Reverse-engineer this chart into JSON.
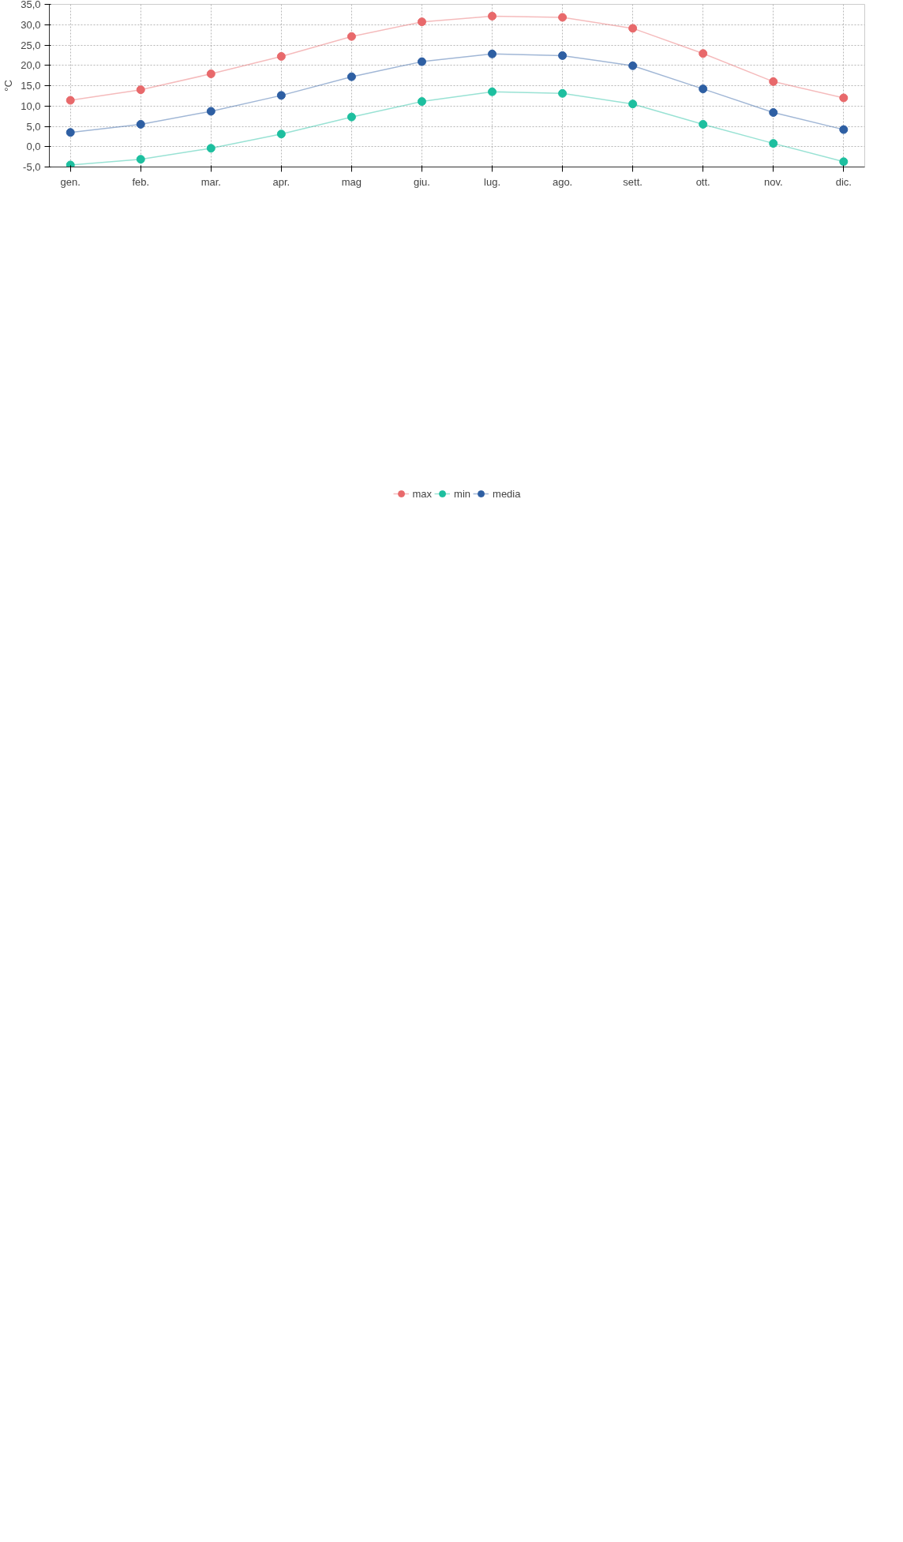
{
  "chart_data": {
    "type": "line",
    "ylabel": "°C",
    "categories": [
      "gen.",
      "feb.",
      "mar.",
      "apr.",
      "mag",
      "giu.",
      "lug.",
      "ago.",
      "sett.",
      "ott.",
      "nov.",
      "dic."
    ],
    "series": [
      {
        "name": "max",
        "color": "#e8696b",
        "values": [
          11.4,
          14.0,
          17.9,
          22.2,
          27.1,
          30.7,
          32.1,
          31.8,
          29.1,
          22.9,
          16.0,
          12.0
        ]
      },
      {
        "name": "min",
        "color": "#1dbf9f",
        "values": [
          -4.5,
          -3.1,
          -0.4,
          3.1,
          7.3,
          11.1,
          13.5,
          13.1,
          10.5,
          5.5,
          0.8,
          -3.7
        ]
      },
      {
        "name": "media",
        "color": "#2e5fa3",
        "values": [
          3.5,
          5.5,
          8.7,
          12.6,
          17.2,
          20.9,
          22.8,
          22.4,
          19.9,
          14.2,
          8.4,
          4.2
        ]
      }
    ],
    "ylim": [
      -5,
      35
    ],
    "yticks": [
      {
        "value": -5,
        "label": "-5,0"
      },
      {
        "value": 0,
        "label": "0,0"
      },
      {
        "value": 5,
        "label": "5,0"
      },
      {
        "value": 10,
        "label": "10,0"
      },
      {
        "value": 15,
        "label": "15,0"
      },
      {
        "value": 20,
        "label": "20,0"
      },
      {
        "value": 25,
        "label": "25,0"
      },
      {
        "value": 30,
        "label": "30,0"
      },
      {
        "value": 35,
        "label": "35,0"
      }
    ],
    "grid": true,
    "legend": "bottom",
    "marker": "circle",
    "line_style": "solid"
  }
}
